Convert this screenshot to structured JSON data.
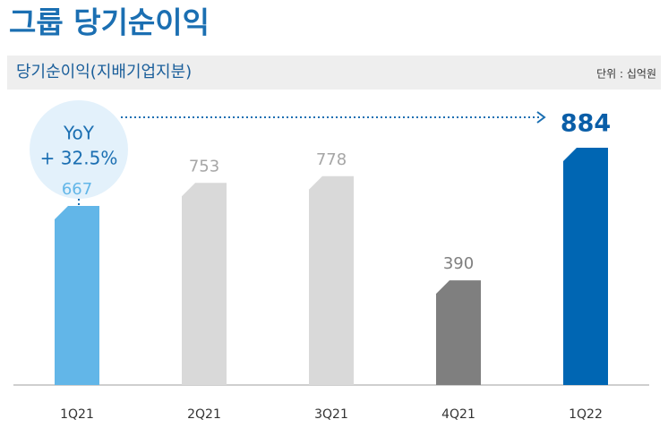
{
  "chart_data": {
    "type": "bar",
    "title": "그룹 당기순이익",
    "subtitle": "당기순이익(지배기업지분)",
    "unit": "단위 : 십억원",
    "categories": [
      "1Q21",
      "2Q21",
      "3Q21",
      "4Q21",
      "1Q22"
    ],
    "values": [
      667,
      753,
      778,
      390,
      884
    ],
    "colors": [
      "#62b6e8",
      "#d9d9d9",
      "#d9d9d9",
      "#7f7f7f",
      "#0066b3"
    ],
    "label_colors": [
      "#62b6e8",
      "#a6a6a6",
      "#a6a6a6",
      "#7f7f7f",
      "#0a5ea8"
    ],
    "annotations": [
      "YoY",
      "+ 32.5%"
    ]
  }
}
